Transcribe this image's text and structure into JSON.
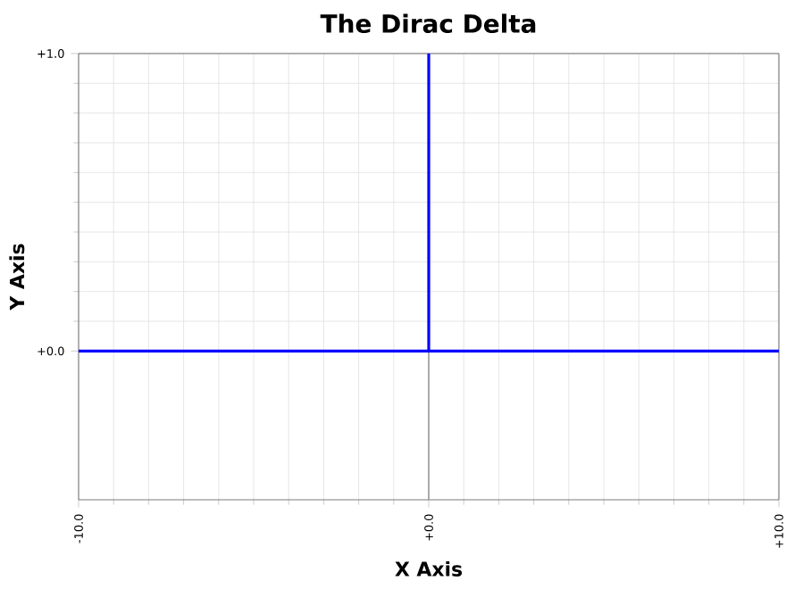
{
  "chart_data": {
    "type": "line",
    "title": "The Dirac Delta",
    "xlabel": "X Axis",
    "ylabel": "Y Axis",
    "x": [
      -10,
      0,
      0,
      0,
      10
    ],
    "series": [
      {
        "color": "#0000ff",
        "values": [
          0,
          0,
          1,
          0,
          0
        ]
      }
    ],
    "xlim": [
      -10,
      10
    ],
    "ylim": [
      -0.5,
      1.0
    ],
    "xticks": [
      {
        "value": -10,
        "label": "-10.0"
      },
      {
        "value": 0,
        "label": "+0.0"
      },
      {
        "value": 10,
        "label": "+10.0"
      }
    ],
    "yticks": [
      {
        "value": 0,
        "label": "+0.0"
      },
      {
        "value": 1,
        "label": "+1.0"
      }
    ],
    "ref_lines": [
      {
        "axis": "x",
        "value": 0,
        "color": "#999999"
      }
    ],
    "grid": true,
    "marker": "none",
    "line_style": "solid"
  }
}
